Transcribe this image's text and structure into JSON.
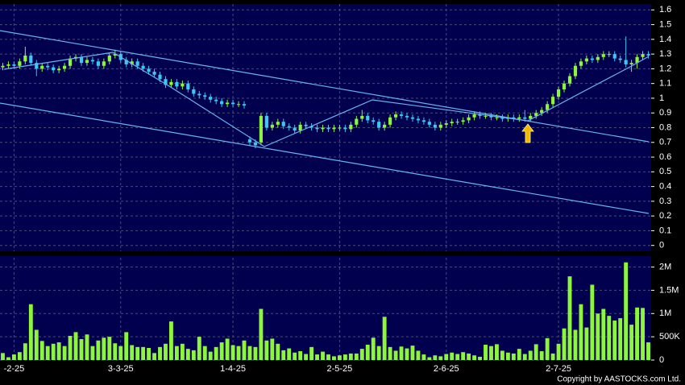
{
  "chart_data": [
    {
      "type": "candlestick",
      "up_color": "#8cf53c",
      "down_color": "#3cc8f5",
      "grid": true,
      "ylim": [
        -0.04,
        1.64
      ],
      "yticks": [
        0,
        0.1,
        0.2,
        0.3,
        0.4,
        0.5,
        0.6,
        0.7,
        0.8,
        0.9,
        1,
        1.1,
        1.2,
        1.3,
        1.4,
        1.5,
        1.6
      ],
      "open": [
        1.21,
        1.22,
        1.23,
        1.22,
        1.25,
        1.29,
        1.24,
        1.2,
        1.22,
        1.21,
        1.19,
        1.2,
        1.22,
        1.27,
        1.28,
        1.24,
        1.26,
        1.25,
        1.22,
        1.25,
        1.29,
        1.3,
        1.26,
        1.23,
        1.25,
        1.22,
        1.2,
        1.18,
        1.16,
        1.13,
        1.09,
        1.11,
        1.08,
        1.1,
        1.06,
        1.03,
        1.02,
        1.01,
        0.99,
        0.98,
        0.96,
        0.97,
        0.96,
        0.96,
        0.72,
        0.7,
        0.7,
        0.88,
        0.8,
        0.82,
        0.84,
        0.81,
        0.8,
        0.78,
        0.82,
        0.81,
        0.8,
        0.79,
        0.8,
        0.79,
        0.8,
        0.8,
        0.79,
        0.82,
        0.86,
        0.88,
        0.85,
        0.84,
        0.8,
        0.82,
        0.87,
        0.89,
        0.88,
        0.87,
        0.86,
        0.85,
        0.84,
        0.82,
        0.8,
        0.82,
        0.83,
        0.84,
        0.84,
        0.85,
        0.87,
        0.89,
        0.88,
        0.88,
        0.87,
        0.87,
        0.86,
        0.87,
        0.86,
        0.87,
        0.86,
        0.88,
        0.9,
        0.92,
        0.96,
        1.01,
        1.06,
        1.1,
        1.15,
        1.22,
        1.25,
        1.27,
        1.26,
        1.28,
        1.3,
        1.3,
        1.27,
        1.26,
        1.23,
        1.24,
        1.28,
        1.3
      ],
      "high": [
        1.24,
        1.25,
        1.25,
        1.27,
        1.35,
        1.31,
        1.26,
        1.24,
        1.24,
        1.23,
        1.22,
        1.24,
        1.29,
        1.3,
        1.3,
        1.28,
        1.28,
        1.27,
        1.27,
        1.31,
        1.33,
        1.32,
        1.28,
        1.27,
        1.27,
        1.24,
        1.22,
        1.2,
        1.18,
        1.15,
        1.13,
        1.13,
        1.12,
        1.12,
        1.08,
        1.05,
        1.04,
        1.03,
        1.01,
        1.0,
        0.99,
        0.99,
        0.98,
        0.98,
        0.74,
        0.72,
        0.9,
        0.9,
        0.84,
        0.86,
        0.86,
        0.83,
        0.82,
        0.84,
        0.84,
        0.83,
        0.82,
        0.82,
        0.82,
        0.82,
        0.82,
        0.82,
        0.84,
        0.88,
        0.92,
        0.9,
        0.87,
        0.86,
        0.84,
        0.89,
        0.91,
        0.91,
        0.9,
        0.89,
        0.88,
        0.87,
        0.86,
        0.84,
        0.84,
        0.85,
        0.86,
        0.86,
        0.87,
        0.89,
        0.91,
        0.91,
        0.9,
        0.9,
        0.89,
        0.89,
        0.89,
        0.89,
        0.89,
        0.92,
        0.9,
        0.92,
        0.94,
        0.98,
        1.03,
        1.08,
        1.12,
        1.17,
        1.24,
        1.27,
        1.29,
        1.29,
        1.3,
        1.32,
        1.32,
        1.32,
        1.29,
        1.42,
        1.26,
        1.3,
        1.32,
        1.32
      ],
      "low": [
        1.19,
        1.2,
        1.2,
        1.2,
        1.23,
        1.22,
        1.15,
        1.18,
        1.19,
        1.17,
        1.17,
        1.18,
        1.2,
        1.25,
        1.22,
        1.22,
        1.23,
        1.2,
        1.2,
        1.23,
        1.27,
        1.24,
        1.21,
        1.21,
        1.2,
        1.18,
        1.16,
        1.14,
        1.11,
        1.07,
        1.07,
        1.06,
        1.06,
        1.04,
        1.01,
        1.0,
        0.99,
        0.97,
        0.96,
        0.94,
        0.94,
        0.94,
        0.94,
        0.93,
        0.68,
        0.66,
        0.68,
        0.78,
        0.78,
        0.8,
        0.79,
        0.78,
        0.76,
        0.76,
        0.79,
        0.78,
        0.77,
        0.77,
        0.77,
        0.77,
        0.78,
        0.77,
        0.77,
        0.8,
        0.84,
        0.83,
        0.82,
        0.78,
        0.78,
        0.8,
        0.85,
        0.86,
        0.85,
        0.84,
        0.83,
        0.82,
        0.8,
        0.78,
        0.78,
        0.8,
        0.81,
        0.82,
        0.82,
        0.83,
        0.85,
        0.86,
        0.86,
        0.85,
        0.85,
        0.84,
        0.84,
        0.84,
        0.84,
        0.84,
        0.84,
        0.86,
        0.88,
        0.9,
        0.94,
        0.99,
        1.04,
        1.08,
        1.13,
        1.2,
        1.23,
        1.24,
        1.24,
        1.26,
        1.28,
        1.25,
        1.24,
        1.21,
        1.18,
        1.2,
        1.26,
        1.27
      ],
      "close": [
        1.22,
        1.23,
        1.22,
        1.25,
        1.29,
        1.24,
        1.2,
        1.22,
        1.21,
        1.19,
        1.2,
        1.22,
        1.27,
        1.28,
        1.24,
        1.26,
        1.25,
        1.22,
        1.25,
        1.29,
        1.3,
        1.26,
        1.23,
        1.25,
        1.22,
        1.2,
        1.18,
        1.16,
        1.13,
        1.09,
        1.11,
        1.08,
        1.1,
        1.06,
        1.03,
        1.02,
        1.01,
        0.99,
        0.98,
        0.96,
        0.97,
        0.96,
        0.96,
        0.95,
        0.7,
        0.68,
        0.88,
        0.8,
        0.82,
        0.84,
        0.81,
        0.8,
        0.78,
        0.82,
        0.81,
        0.8,
        0.79,
        0.8,
        0.79,
        0.8,
        0.8,
        0.79,
        0.82,
        0.86,
        0.88,
        0.85,
        0.84,
        0.8,
        0.82,
        0.87,
        0.89,
        0.88,
        0.87,
        0.86,
        0.85,
        0.84,
        0.82,
        0.8,
        0.82,
        0.83,
        0.84,
        0.84,
        0.85,
        0.87,
        0.89,
        0.88,
        0.88,
        0.87,
        0.87,
        0.86,
        0.87,
        0.86,
        0.87,
        0.86,
        0.88,
        0.9,
        0.92,
        0.96,
        1.01,
        1.06,
        1.1,
        1.15,
        1.22,
        1.25,
        1.27,
        1.26,
        1.28,
        1.3,
        1.3,
        1.27,
        1.26,
        1.23,
        1.24,
        1.28,
        1.3,
        1.29
      ]
    },
    {
      "type": "bar",
      "color": "#8cf53c",
      "grid": true,
      "ylim": [
        0,
        2200000
      ],
      "yticks": [
        {
          "value": 0,
          "label": "0"
        },
        {
          "value": 500000,
          "label": "500K"
        },
        {
          "value": 1000000,
          "label": "1M"
        },
        {
          "value": 1500000,
          "label": "1.5M"
        },
        {
          "value": 2000000,
          "label": "2M"
        }
      ],
      "categories": [
        null,
        null,
        "-2-25",
        null,
        null,
        null,
        null,
        null,
        null,
        null,
        null,
        null,
        null,
        null,
        null,
        null,
        null,
        null,
        null,
        null,
        null,
        "3-3-25",
        null,
        null,
        null,
        null,
        null,
        null,
        null,
        null,
        null,
        null,
        null,
        null,
        null,
        null,
        null,
        null,
        null,
        null,
        null,
        "1-4-25",
        null,
        null,
        null,
        null,
        null,
        null,
        null,
        null,
        null,
        null,
        null,
        null,
        null,
        null,
        null,
        null,
        null,
        null,
        "2-5-25",
        null,
        null,
        null,
        null,
        null,
        null,
        null,
        null,
        null,
        null,
        null,
        null,
        null,
        null,
        null,
        null,
        null,
        null,
        "2-6-25",
        null,
        null,
        null,
        null,
        null,
        null,
        null,
        null,
        null,
        null,
        null,
        null,
        null,
        null,
        null,
        null,
        null,
        null,
        null,
        "2-7-25",
        null,
        null,
        null,
        null,
        null,
        null,
        null,
        null,
        null,
        null,
        null,
        null,
        null,
        null,
        null,
        null
      ],
      "values": [
        150000,
        60000,
        120000,
        170000,
        360000,
        1200000,
        650000,
        410000,
        300000,
        350000,
        380000,
        300000,
        520000,
        600000,
        450000,
        550000,
        300000,
        420000,
        480000,
        500000,
        360000,
        300000,
        600000,
        320000,
        280000,
        280000,
        260000,
        150000,
        280000,
        350000,
        830000,
        300000,
        350000,
        240000,
        210000,
        500000,
        300000,
        180000,
        280000,
        380000,
        460000,
        320000,
        300000,
        420000,
        300000,
        280000,
        1100000,
        420000,
        460000,
        350000,
        210000,
        250000,
        160000,
        190000,
        130000,
        280000,
        120000,
        180000,
        120000,
        80000,
        100000,
        120000,
        140000,
        140000,
        240000,
        330000,
        480000,
        300000,
        930000,
        280000,
        200000,
        290000,
        250000,
        310000,
        200000,
        120000,
        60000,
        100000,
        80000,
        130000,
        160000,
        130000,
        170000,
        140000,
        100000,
        70000,
        330000,
        300000,
        340000,
        200000,
        160000,
        140000,
        240000,
        130000,
        200000,
        340000,
        190000,
        470000,
        140000,
        350000,
        680000,
        1800000,
        650000,
        1200000,
        700000,
        1620000,
        1000000,
        1100000,
        950000,
        850000,
        900000,
        2100000,
        760000,
        1130000,
        1120000,
        380000
      ]
    }
  ],
  "copyright": "Copyright by AASTOCKS.com Ltd."
}
